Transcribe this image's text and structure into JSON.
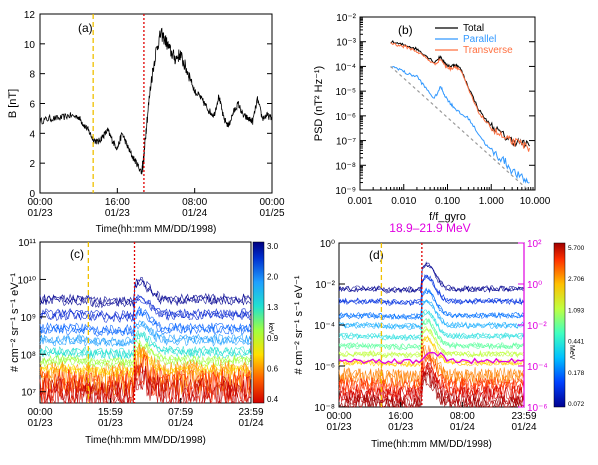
{
  "chart_data": [
    {
      "panel": "(a)",
      "type": "line",
      "ylabel": "B [nT]",
      "xlabel": "Time(hh:mm MM/DD/1998)",
      "ylim": [
        0,
        12
      ],
      "yticks": [
        "0",
        "2",
        "4",
        "6",
        "8",
        "10",
        "12"
      ],
      "xticks": [
        [
          "00:00",
          "01/23"
        ],
        [
          "16:00",
          "01/23"
        ],
        [
          "08:00",
          "01/24"
        ],
        [
          "00:00",
          "01/25"
        ]
      ],
      "xlim_hours": [
        0,
        48
      ],
      "markers": [
        {
          "x": 11.0,
          "color": "#f0c000",
          "style": "dashed"
        },
        {
          "x": 21.5,
          "color": "#e00000",
          "style": "dotted"
        }
      ],
      "series": [
        {
          "color": "#000000",
          "x": [
            0,
            2,
            4,
            6,
            8,
            9,
            10,
            11,
            12,
            13,
            14,
            15,
            16,
            17,
            18,
            19,
            20,
            21,
            21.5,
            22,
            23,
            24,
            25,
            26,
            27,
            28,
            29,
            30,
            31,
            32,
            33,
            34,
            35,
            36,
            37,
            38,
            39,
            40,
            41,
            42,
            43,
            44,
            45,
            46,
            47,
            48
          ],
          "y": [
            4.8,
            5.0,
            5.0,
            5.2,
            5.1,
            4.6,
            4.2,
            3.6,
            3.4,
            3.8,
            4.2,
            3.5,
            3.0,
            4.0,
            3.2,
            2.5,
            2.0,
            1.4,
            2.4,
            4.5,
            7.5,
            9.5,
            10.7,
            10.2,
            9.5,
            9.0,
            9.3,
            8.5,
            7.8,
            6.8,
            6.5,
            6.0,
            5.5,
            5.2,
            6.5,
            5.0,
            4.5,
            5.4,
            6.0,
            5.2,
            5.0,
            4.8,
            6.3,
            5.0,
            5.2,
            5.0
          ]
        }
      ]
    },
    {
      "panel": "(b)",
      "type": "line",
      "xscale": "log",
      "yscale": "log",
      "ylabel": "PSD (nT² Hz⁻¹)",
      "xlabel": "f/f_gyro",
      "xlim": [
        0.001,
        10
      ],
      "ylim": [
        1e-09,
        0.01
      ],
      "xticks": [
        "0.001",
        "0.010",
        "0.100",
        "1.000",
        "10.000"
      ],
      "yticks": [
        "10⁻⁹",
        "10⁻⁸",
        "10⁻⁷",
        "10⁻⁶",
        "10⁻⁵",
        "10⁻⁴",
        "10⁻³",
        "10⁻²"
      ],
      "legend": [
        "Total",
        "Parallel",
        "Transverse"
      ],
      "legend_position": "top-right",
      "series": [
        {
          "name": "Total",
          "color": "#000000",
          "x": [
            0.005,
            0.008,
            0.012,
            0.02,
            0.03,
            0.05,
            0.07,
            0.09,
            0.12,
            0.15,
            0.2,
            0.3,
            0.5,
            0.8,
            1.2,
            2,
            3,
            5,
            7.5
          ],
          "y": [
            0.001,
            0.0008,
            0.0007,
            0.0005,
            0.0003,
            0.00015,
            0.00025,
            0.00012,
            0.0001,
            0.00012,
            8e-05,
            1.5e-05,
            2e-06,
            6e-07,
            3e-07,
            1.5e-07,
            1e-07,
            8e-08,
            6e-08
          ]
        },
        {
          "name": "Parallel",
          "color": "#3399ff",
          "x": [
            0.005,
            0.008,
            0.012,
            0.02,
            0.03,
            0.05,
            0.07,
            0.09,
            0.12,
            0.15,
            0.2,
            0.3,
            0.5,
            0.8,
            1.2,
            2,
            3,
            5,
            7.5
          ],
          "y": [
            0.0001,
            8e-05,
            5e-05,
            4e-05,
            1.5e-05,
            5e-06,
            1.5e-05,
            6e-06,
            3e-06,
            2e-06,
            1.2e-06,
            8e-07,
            2e-07,
            6e-08,
            3e-08,
            1.5e-08,
            6e-09,
            3e-09,
            2e-09
          ]
        },
        {
          "name": "Transverse",
          "color": "#ff7040",
          "x": [
            0.005,
            0.008,
            0.012,
            0.02,
            0.03,
            0.05,
            0.07,
            0.09,
            0.12,
            0.15,
            0.2,
            0.3,
            0.5,
            0.8,
            1.2,
            2,
            3,
            5,
            7.5
          ],
          "y": [
            0.0009,
            0.0007,
            0.0006,
            0.0004,
            0.00025,
            0.00012,
            0.0002,
            0.0001,
            8e-05,
            0.0001,
            7e-05,
            1.2e-05,
            1.5e-06,
            5e-07,
            2.5e-07,
            1.2e-07,
            9e-08,
            7e-08,
            5e-08
          ]
        },
        {
          "name": "",
          "color": "#999999",
          "style": "dashed",
          "x": [
            0.005,
            7.0
          ],
          "y": [
            0.0001,
            1e-09
          ]
        }
      ]
    },
    {
      "panel": "(c)",
      "type": "line",
      "yscale": "log",
      "ylabel": "# cm⁻² sr⁻¹ s⁻¹ eV⁻¹",
      "xlabel": "Time(hh:mm MM/DD/1998)",
      "ylim": [
        5000000.0,
        100000000000.0
      ],
      "yticks": [
        "10⁷",
        "10⁸",
        "10⁹",
        "10¹⁰",
        "10¹¹"
      ],
      "xticks": [
        [
          "00:00",
          "01/23"
        ],
        [
          "15:59",
          "01/23"
        ],
        [
          "07:59",
          "01/24"
        ],
        [
          "23:59",
          "01/24"
        ]
      ],
      "colorbar": {
        "label": "keV",
        "ticks": [
          "3.0",
          "2.0",
          "1.3",
          "0.9",
          "0.6",
          "0.4"
        ]
      },
      "markers": [
        {
          "x": 11.0,
          "color": "#f0c000",
          "style": "dashed"
        },
        {
          "x": 21.5,
          "color": "#e00000",
          "style": "dotted"
        }
      ],
      "channel_levels": [
        3000000000.0,
        1200000000.0,
        500000000.0,
        250000000.0,
        120000000.0,
        70000000.0,
        40000000.0,
        25000000.0,
        15000000.0,
        9000000.0
      ]
    },
    {
      "panel": "(d)",
      "type": "line",
      "yscale": "log",
      "ylabel": "# cm⁻² sr⁻¹ s⁻¹ eV⁻¹",
      "xlabel": "Time(hh:mm MM/DD/1998)",
      "ylim": [
        1e-08,
        1
      ],
      "yticks": [
        "10⁰",
        "10⁻²",
        "10⁻⁴",
        "10⁻⁶",
        "10⁻⁸"
      ],
      "right_axis": {
        "color": "#e000e0",
        "ticks": [
          "10²",
          "10⁰",
          "10⁻²",
          "10⁻⁴",
          "10⁻⁶"
        ]
      },
      "annotation": "18.9–21.9 MeV",
      "xticks": [
        [
          "00:00",
          "01/23"
        ],
        [
          "16:00",
          "01/23"
        ],
        [
          "08:00",
          "01/24"
        ],
        [
          "23:59",
          "01/24"
        ]
      ],
      "colorbar": {
        "label": "MeV",
        "ticks": [
          "5.700",
          "2.706",
          "1.093",
          "0.441",
          "0.178",
          "0.072"
        ]
      },
      "markers": [
        {
          "x": 11.0,
          "color": "#f0c000",
          "style": "dashed"
        },
        {
          "x": 21.5,
          "color": "#e00000",
          "style": "dotted"
        }
      ],
      "channel_levels": [
        0.006,
        0.0015,
        0.0003,
        0.0001,
        3e-05,
        1e-05,
        4e-06,
        1.5e-06,
        3e-07,
        1e-07,
        4e-08,
        1.5e-08
      ]
    }
  ]
}
